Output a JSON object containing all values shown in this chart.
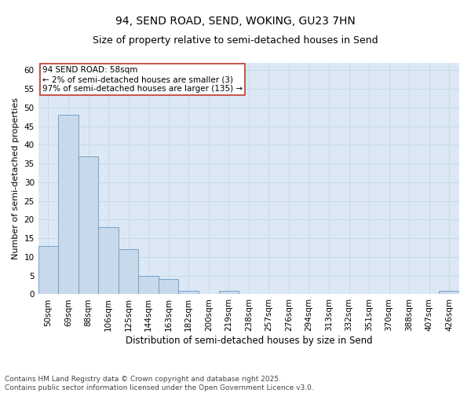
{
  "title1": "94, SEND ROAD, SEND, WOKING, GU23 7HN",
  "title2": "Size of property relative to semi-detached houses in Send",
  "xlabel": "Distribution of semi-detached houses by size in Send",
  "ylabel": "Number of semi-detached properties",
  "categories": [
    "50sqm",
    "69sqm",
    "88sqm",
    "106sqm",
    "125sqm",
    "144sqm",
    "163sqm",
    "182sqm",
    "200sqm",
    "219sqm",
    "238sqm",
    "257sqm",
    "276sqm",
    "294sqm",
    "313sqm",
    "332sqm",
    "351sqm",
    "370sqm",
    "388sqm",
    "407sqm",
    "426sqm"
  ],
  "values": [
    13,
    48,
    37,
    18,
    12,
    5,
    4,
    1,
    0,
    1,
    0,
    0,
    0,
    0,
    0,
    0,
    0,
    0,
    0,
    0,
    1
  ],
  "bar_color": "#c9d9ec",
  "bar_edge_color": "#6899c0",
  "annotation_text": "94 SEND ROAD: 58sqm\n← 2% of semi-detached houses are smaller (3)\n97% of semi-detached houses are larger (135) →",
  "annotation_box_color": "white",
  "annotation_box_edge_color": "#c0392b",
  "ylim": [
    0,
    62
  ],
  "yticks": [
    0,
    5,
    10,
    15,
    20,
    25,
    30,
    35,
    40,
    45,
    50,
    55,
    60
  ],
  "grid_color": "#c5d8ea",
  "background_color": "#dce9f5",
  "footnote": "Contains HM Land Registry data © Crown copyright and database right 2025.\nContains public sector information licensed under the Open Government Licence v3.0.",
  "title1_fontsize": 10,
  "title2_fontsize": 9,
  "xlabel_fontsize": 8.5,
  "ylabel_fontsize": 8,
  "tick_fontsize": 7.5,
  "annotation_fontsize": 7.5,
  "footnote_fontsize": 6.5
}
